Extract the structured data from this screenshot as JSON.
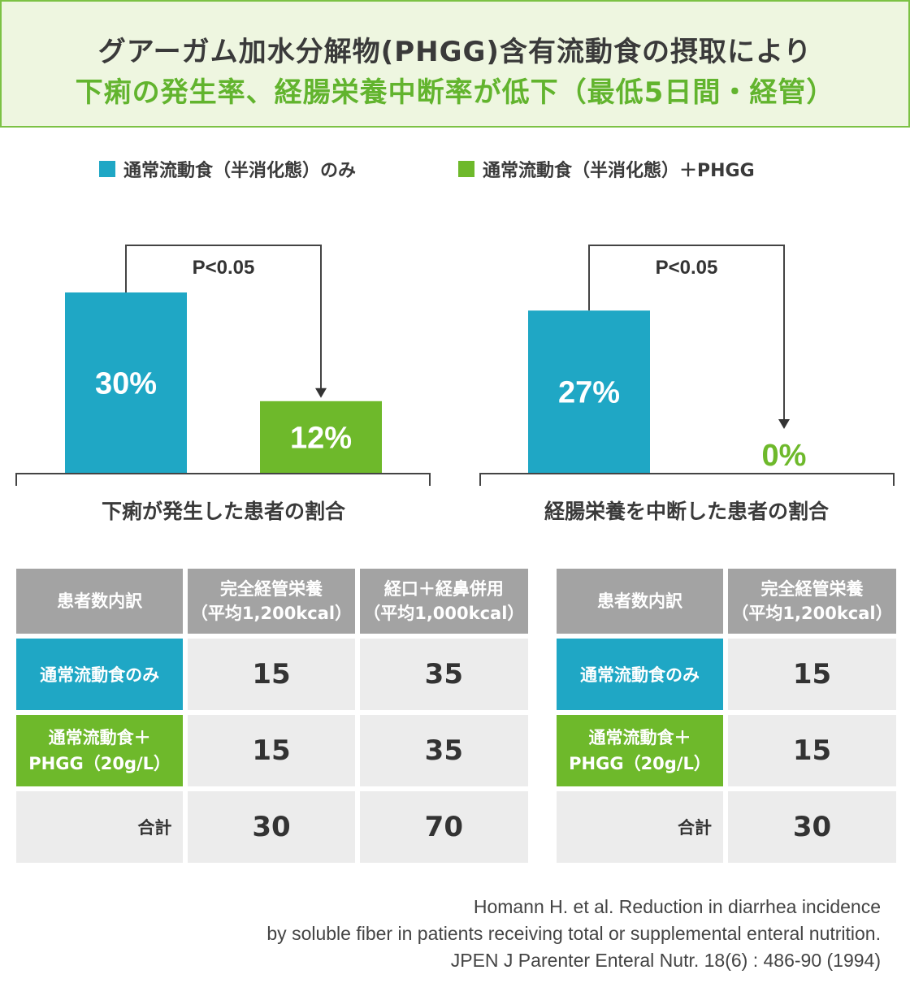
{
  "header": {
    "line1": "グアーガム加水分解物(PHGG)含有流動食の摂取により",
    "line2": "下痢の発生率、経腸栄養中断率が低下（最低5日間・経管）"
  },
  "legend": [
    {
      "label": "通常流動食（半消化態）のみ",
      "color": "#1fa7c5"
    },
    {
      "label": "通常流動食（半消化態）＋PHGG",
      "color": "#6eb92b"
    }
  ],
  "chart_data": [
    {
      "type": "bar",
      "title": "下痢が発生した患者の割合",
      "categories": [
        "通常流動食（半消化態）のみ",
        "通常流動食（半消化態）＋PHGG"
      ],
      "values": [
        30,
        12
      ],
      "value_labels": [
        "30%",
        "12%"
      ],
      "ylim": [
        0,
        30
      ],
      "significance": "P<0.05",
      "colors": [
        "#1fa7c5",
        "#6eb92b"
      ]
    },
    {
      "type": "bar",
      "title": "経腸栄養を中断した患者の割合",
      "categories": [
        "通常流動食（半消化態）のみ",
        "通常流動食（半消化態）＋PHGG"
      ],
      "values": [
        27,
        0
      ],
      "value_labels": [
        "27%",
        "0%"
      ],
      "ylim": [
        0,
        30
      ],
      "significance": "P<0.05",
      "colors": [
        "#1fa7c5",
        "#6eb92b"
      ]
    }
  ],
  "table_left": {
    "headers": [
      "患者数内訳",
      "完全経管栄養",
      "（平均1,200kcal）",
      "経口＋経鼻併用",
      "（平均1,000kcal）"
    ],
    "rows": [
      {
        "label": "通常流動食のみ",
        "v1": "15",
        "v2": "35"
      },
      {
        "label1": "通常流動食＋",
        "label2": "PHGG（20g/L）",
        "v1": "15",
        "v2": "35"
      },
      {
        "label": "合計",
        "v1": "30",
        "v2": "70"
      }
    ]
  },
  "table_right": {
    "headers": [
      "患者数内訳",
      "完全経管栄養",
      "（平均1,200kcal）"
    ],
    "rows": [
      {
        "label": "通常流動食のみ",
        "v1": "15"
      },
      {
        "label1": "通常流動食＋",
        "label2": "PHGG（20g/L）",
        "v1": "15"
      },
      {
        "label": "合計",
        "v1": "30"
      }
    ]
  },
  "citation": {
    "line1": "Homann H. et al. Reduction in diarrhea incidence",
    "line2": "by soluble fiber in patients receiving total or supplemental enteral nutrition.",
    "line3": "JPEN J Parenter Enteral Nutr. 18(6) : 486-90 (1994)"
  }
}
